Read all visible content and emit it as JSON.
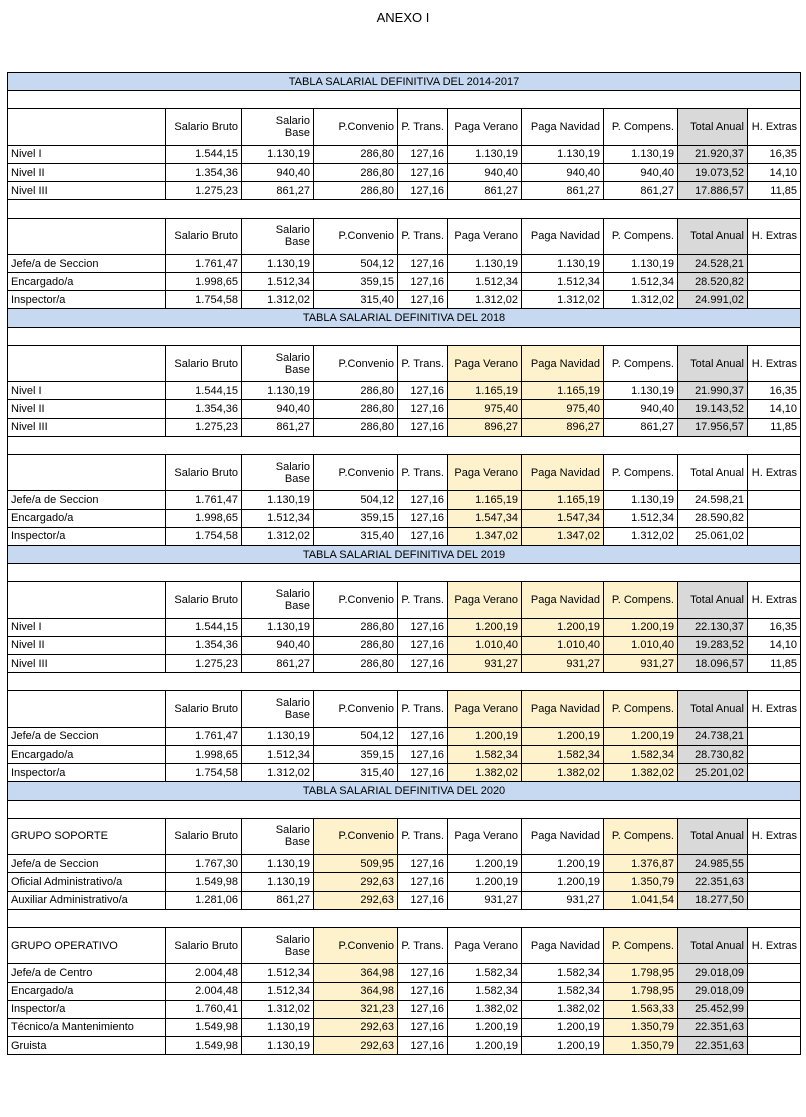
{
  "header": {
    "title": "ANEXO I"
  },
  "columns": [
    "Salario Bruto",
    "Salario Base",
    "P.Convenio",
    "P. Trans.",
    "Paga Verano",
    "Paga Navidad",
    "P. Compens.",
    "Total Anual",
    "H. Extras"
  ],
  "colors": {
    "title_row": "#c6d9f0",
    "highlight": "#fdf2cc",
    "total": "#d9d9d9"
  },
  "sections": [
    {
      "title": "TABLA SALARIAL DEFINITIVA DEL 2014-2017",
      "blocks": [
        {
          "highlight": [],
          "shaded_total": true,
          "rows": [
            {
              "label": "Nivel I",
              "values": [
                "1.544,15",
                "1.130,19",
                "286,80",
                "127,16",
                "1.130,19",
                "1.130,19",
                "1.130,19",
                "21.920,37",
                "16,35"
              ]
            },
            {
              "label": "Nivel II",
              "values": [
                "1.354,36",
                "940,40",
                "286,80",
                "127,16",
                "940,40",
                "940,40",
                "940,40",
                "19.073,52",
                "14,10"
              ]
            },
            {
              "label": "Nivel III",
              "values": [
                "1.275,23",
                "861,27",
                "286,80",
                "127,16",
                "861,27",
                "861,27",
                "861,27",
                "17.886,57",
                "11,85"
              ]
            }
          ]
        },
        {
          "highlight": [],
          "shaded_total": true,
          "rows": [
            {
              "label": "Jefe/a de Seccion",
              "values": [
                "1.761,47",
                "1.130,19",
                "504,12",
                "127,16",
                "1.130,19",
                "1.130,19",
                "1.130,19",
                "24.528,21"
              ]
            },
            {
              "label": "Encargado/a",
              "values": [
                "1.998,65",
                "1.512,34",
                "359,15",
                "127,16",
                "1.512,34",
                "1.512,34",
                "1.512,34",
                "28.520,82"
              ]
            },
            {
              "label": "Inspector/a",
              "values": [
                "1.754,58",
                "1.312,02",
                "315,40",
                "127,16",
                "1.312,02",
                "1.312,02",
                "1.312,02",
                "24.991,02"
              ]
            }
          ]
        }
      ]
    },
    {
      "title": "TABLA SALARIAL DEFINITIVA DEL 2018",
      "blocks": [
        {
          "highlight": [
            "Paga Verano",
            "Paga Navidad"
          ],
          "shaded_total": true,
          "rows": [
            {
              "label": "Nivel I",
              "values": [
                "1.544,15",
                "1.130,19",
                "286,80",
                "127,16",
                "1.165,19",
                "1.165,19",
                "1.130,19",
                "21.990,37",
                "16,35"
              ]
            },
            {
              "label": "Nivel II",
              "values": [
                "1.354,36",
                "940,40",
                "286,80",
                "127,16",
                "975,40",
                "975,40",
                "940,40",
                "19.143,52",
                "14,10"
              ]
            },
            {
              "label": "Nivel III",
              "values": [
                "1.275,23",
                "861,27",
                "286,80",
                "127,16",
                "896,27",
                "896,27",
                "861,27",
                "17.956,57",
                "11,85"
              ]
            }
          ]
        },
        {
          "highlight": [
            "Paga Verano",
            "Paga Navidad"
          ],
          "shaded_total": false,
          "rows": [
            {
              "label": "Jefe/a de Seccion",
              "values": [
                "1.761,47",
                "1.130,19",
                "504,12",
                "127,16",
                "1.165,19",
                "1.165,19",
                "1.130,19",
                "24.598,21"
              ]
            },
            {
              "label": "Encargado/a",
              "values": [
                "1.998,65",
                "1.512,34",
                "359,15",
                "127,16",
                "1.547,34",
                "1.547,34",
                "1.512,34",
                "28.590,82"
              ]
            },
            {
              "label": "Inspector/a",
              "values": [
                "1.754,58",
                "1.312,02",
                "315,40",
                "127,16",
                "1.347,02",
                "1.347,02",
                "1.312,02",
                "25.061,02"
              ]
            }
          ]
        }
      ]
    },
    {
      "title": "TABLA SALARIAL DEFINITIVA DEL 2019",
      "blocks": [
        {
          "highlight": [
            "Paga Verano",
            "Paga Navidad",
            "P. Compens."
          ],
          "shaded_total": true,
          "rows": [
            {
              "label": "Nivel I",
              "values": [
                "1.544,15",
                "1.130,19",
                "286,80",
                "127,16",
                "1.200,19",
                "1.200,19",
                "1.200,19",
                "22.130,37",
                "16,35"
              ]
            },
            {
              "label": "Nivel II",
              "values": [
                "1.354,36",
                "940,40",
                "286,80",
                "127,16",
                "1.010,40",
                "1.010,40",
                "1.010,40",
                "19.283,52",
                "14,10"
              ]
            },
            {
              "label": "Nivel III",
              "values": [
                "1.275,23",
                "861,27",
                "286,80",
                "127,16",
                "931,27",
                "931,27",
                "931,27",
                "18.096,57",
                "11,85"
              ]
            }
          ]
        },
        {
          "highlight": [
            "Paga Verano",
            "Paga Navidad",
            "P. Compens."
          ],
          "shaded_total": true,
          "rows": [
            {
              "label": "Jefe/a de Seccion",
              "values": [
                "1.761,47",
                "1.130,19",
                "504,12",
                "127,16",
                "1.200,19",
                "1.200,19",
                "1.200,19",
                "24.738,21"
              ]
            },
            {
              "label": "Encargado/a",
              "values": [
                "1.998,65",
                "1.512,34",
                "359,15",
                "127,16",
                "1.582,34",
                "1.582,34",
                "1.582,34",
                "28.730,82"
              ]
            },
            {
              "label": "Inspector/a",
              "values": [
                "1.754,58",
                "1.312,02",
                "315,40",
                "127,16",
                "1.382,02",
                "1.382,02",
                "1.382,02",
                "25.201,02"
              ]
            }
          ]
        }
      ]
    },
    {
      "title": "TABLA SALARIAL DEFINITIVA DEL 2020",
      "blocks": [
        {
          "group": "GRUPO SOPORTE",
          "highlight": [
            "P.Convenio",
            "P. Compens."
          ],
          "shaded_total": true,
          "rows": [
            {
              "label": "Jefe/a de Seccion",
              "values": [
                "1.767,30",
                "1.130,19",
                "509,95",
                "127,16",
                "1.200,19",
                "1.200,19",
                "1.376,87",
                "24.985,55"
              ]
            },
            {
              "label": "Oficial Administrativo/a",
              "values": [
                "1.549,98",
                "1.130,19",
                "292,63",
                "127,16",
                "1.200,19",
                "1.200,19",
                "1.350,79",
                "22.351,63"
              ]
            },
            {
              "label": "Auxiliar Administrativo/a",
              "values": [
                "1.281,06",
                "861,27",
                "292,63",
                "127,16",
                "931,27",
                "931,27",
                "1.041,54",
                "18.277,50"
              ]
            }
          ]
        },
        {
          "group": "GRUPO OPERATIVO",
          "highlight": [
            "P.Convenio",
            "P. Compens."
          ],
          "shaded_total": true,
          "rows": [
            {
              "label": "Jefe/a de Centro",
              "values": [
                "2.004,48",
                "1.512,34",
                "364,98",
                "127,16",
                "1.582,34",
                "1.582,34",
                "1.798,95",
                "29.018,09"
              ]
            },
            {
              "label": "Encargado/a",
              "values": [
                "2.004,48",
                "1.512,34",
                "364,98",
                "127,16",
                "1.582,34",
                "1.582,34",
                "1.798,95",
                "29.018,09"
              ]
            },
            {
              "label": "Inspector/a",
              "values": [
                "1.760,41",
                "1.312,02",
                "321,23",
                "127,16",
                "1.382,02",
                "1.382,02",
                "1.563,33",
                "25.452,99"
              ]
            },
            {
              "label": "Técnico/a Mantenimiento",
              "values": [
                "1.549,98",
                "1.130,19",
                "292,63",
                "127,16",
                "1.200,19",
                "1.200,19",
                "1.350,79",
                "22.351,63"
              ]
            },
            {
              "label": "Gruista",
              "values": [
                "1.549,98",
                "1.130,19",
                "292,63",
                "127,16",
                "1.200,19",
                "1.200,19",
                "1.350,79",
                "22.351,63"
              ]
            }
          ]
        }
      ]
    }
  ]
}
